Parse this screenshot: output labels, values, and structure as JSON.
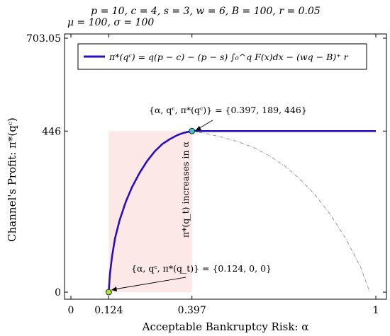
{
  "chart_data": {
    "type": "line",
    "title_lines": [
      "p = 10, c = 4, s = 3, w = 6, B = 100, r = 0.05",
      "μ = 100, σ = 100"
    ],
    "xlabel": "Acceptable Bankruptcy Risk: α",
    "ylabel": "Channel's Profit: π*(qᶜ)",
    "xlim": [
      0,
      1
    ],
    "ylim": [
      0,
      703.05
    ],
    "x_ticks": [
      {
        "value": 0,
        "label": "0"
      },
      {
        "value": 0.124,
        "label": "0.124"
      },
      {
        "value": 0.397,
        "label": "0.397"
      },
      {
        "value": 1,
        "label": "1"
      }
    ],
    "y_ticks": [
      {
        "value": 0,
        "label": "0"
      },
      {
        "value": 446,
        "label": "446"
      },
      {
        "value": 703.05,
        "label": "703.05"
      }
    ],
    "legend": {
      "position": "top",
      "entries": [
        {
          "label": "π*(qᶜ) = q(p − c) − (p − s) ∫₀^q F(x)dx − (wq − B)⁺ r",
          "color": "#2a0fbf"
        }
      ]
    },
    "series": [
      {
        "name": "π*(qᶜ) = q(p − c) − (p − s) ∫₀^q F(x)dx − (wq − B)⁺ r",
        "style": "solid",
        "color": "#2a0fbf",
        "x": [
          0.124,
          0.128,
          0.135,
          0.145,
          0.16,
          0.18,
          0.2,
          0.225,
          0.25,
          0.275,
          0.3,
          0.325,
          0.35,
          0.37,
          0.385,
          0.397,
          0.5,
          0.6,
          0.7,
          0.8,
          0.9,
          1.0
        ],
        "y": [
          0,
          50,
          100,
          150,
          200,
          250,
          290,
          330,
          363,
          390,
          410,
          424,
          435,
          441,
          444,
          446,
          446,
          446,
          446,
          446,
          446,
          446
        ]
      },
      {
        "style": "dash-dot",
        "color": "#888888",
        "x": [
          0.397,
          0.45,
          0.5,
          0.55,
          0.6,
          0.65,
          0.7,
          0.75,
          0.8,
          0.85,
          0.9,
          0.95,
          0.98
        ],
        "y": [
          446,
          438,
          428,
          416,
          400,
          378,
          350,
          314,
          270,
          216,
          150,
          70,
          0
        ]
      }
    ],
    "highlight_region": {
      "x": [
        0.124,
        0.397
      ],
      "y": [
        0,
        446
      ],
      "color": "#fde8e8"
    },
    "points": [
      {
        "x": 0.124,
        "y": 0,
        "color": "#a6e22e"
      },
      {
        "x": 0.397,
        "y": 446,
        "color": "#3fc1c9"
      }
    ],
    "annotations": [
      {
        "text": "{α, qᶜ, π*(qᶜ)} = {0.397, 189, 446}",
        "target_x": 0.397,
        "target_y": 446
      },
      {
        "text": "{α, qᶜ, π*(q_t)} = {0.124, 0, 0}",
        "target_x": 0.124,
        "target_y": 0
      },
      {
        "text": "π*(q_t) increases in α"
      }
    ],
    "grid": false
  }
}
